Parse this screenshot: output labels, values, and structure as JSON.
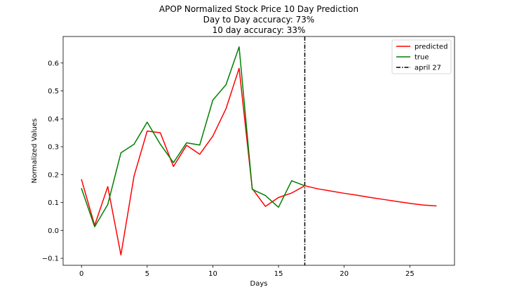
{
  "chart_data": {
    "type": "line",
    "title_lines": [
      "APOP Normalized Stock Price 10 Day Prediction",
      "Day to Day accuracy: 73%",
      "10 day accuracy: 33%"
    ],
    "xlabel": "Days",
    "ylabel": "Normalized Values",
    "xlim": [
      -1.4,
      28.4
    ],
    "ylim": [
      -0.125,
      0.695
    ],
    "xticks": [
      0,
      5,
      10,
      15,
      20,
      25
    ],
    "yticks": [
      -0.1,
      0.0,
      0.1,
      0.2,
      0.3,
      0.4,
      0.5,
      0.6
    ],
    "ytick_labels": [
      "−0.1",
      "0.0",
      "0.1",
      "0.2",
      "0.3",
      "0.4",
      "0.5",
      "0.6"
    ],
    "grid": false,
    "legend_position": "top-right",
    "series": [
      {
        "name": "predicted",
        "color": "#ff0000",
        "style": "solid",
        "x": [
          0,
          1,
          2,
          3,
          4,
          5,
          6,
          7,
          8,
          9,
          10,
          11,
          12,
          13,
          14,
          15,
          16,
          17,
          18,
          19,
          20,
          21,
          22,
          23,
          24,
          25,
          26,
          27
        ],
        "y": [
          0.182,
          0.018,
          0.157,
          -0.088,
          0.195,
          0.356,
          0.35,
          0.229,
          0.305,
          0.273,
          0.338,
          0.436,
          0.581,
          0.15,
          0.086,
          0.118,
          0.134,
          0.16,
          0.149,
          0.141,
          0.133,
          0.126,
          0.118,
          0.111,
          0.104,
          0.097,
          0.091,
          0.088
        ]
      },
      {
        "name": "true",
        "color": "#008000",
        "style": "solid",
        "x": [
          0,
          1,
          2,
          3,
          4,
          5,
          6,
          7,
          8,
          9,
          10,
          11,
          12,
          13,
          14,
          15,
          16,
          17
        ],
        "y": [
          0.15,
          0.013,
          0.093,
          0.278,
          0.309,
          0.388,
          0.309,
          0.243,
          0.314,
          0.306,
          0.467,
          0.522,
          0.658,
          0.147,
          0.125,
          0.083,
          0.178,
          0.16
        ]
      }
    ],
    "vlines": [
      {
        "name": "april 27",
        "x": 17,
        "color": "#000000",
        "style": "dashdot"
      }
    ]
  }
}
